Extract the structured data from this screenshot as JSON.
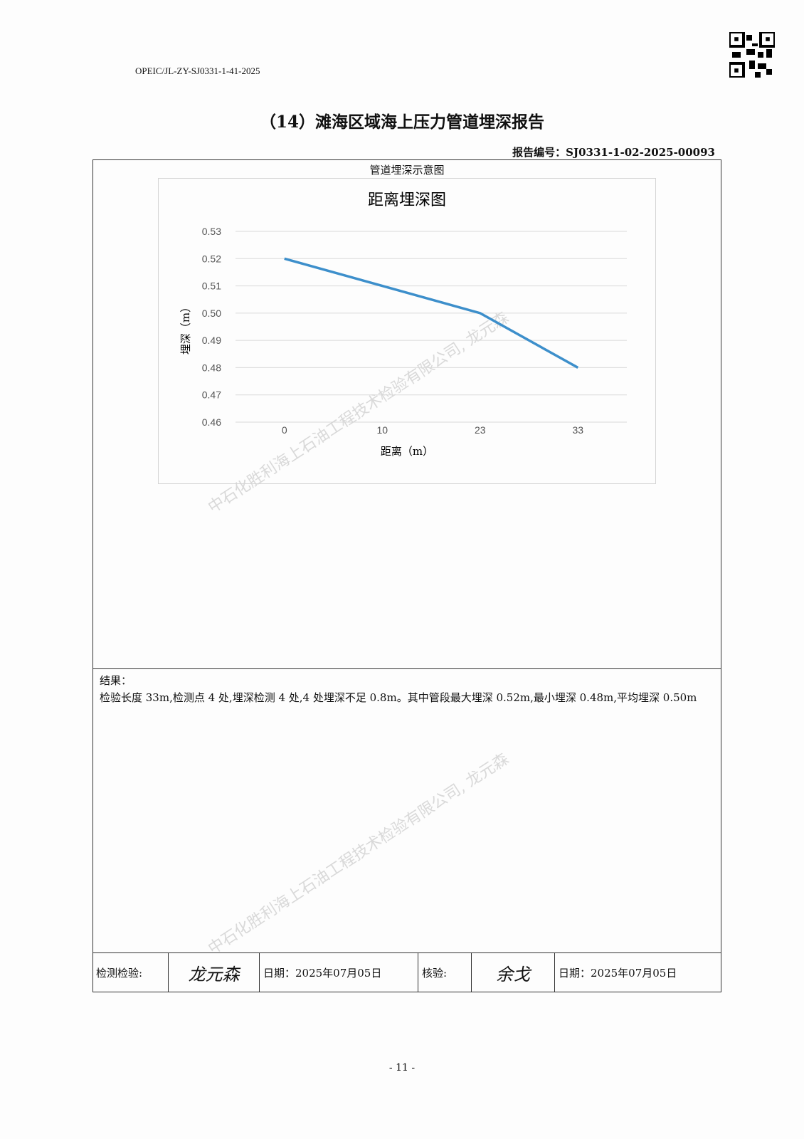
{
  "header": {
    "doc_code": "OPEIC/JL-ZY-SJ0331-1-41-2025",
    "title": "（14）滩海区域海上压力管道埋深报告",
    "report_no": "报告编号：SJ0331-1-02-2025-00093"
  },
  "section_caption": "管道埋深示意图",
  "chart_data": {
    "type": "line",
    "title": "距离埋深图",
    "xlabel": "距离（m）",
    "ylabel": "埋深（m）",
    "categories": [
      "0",
      "10",
      "23",
      "33"
    ],
    "values": [
      0.52,
      0.51,
      0.5,
      0.48
    ],
    "ylim": [
      0.46,
      0.53
    ],
    "yticks": [
      "0.46",
      "0.47",
      "0.48",
      "0.49",
      "0.50",
      "0.51",
      "0.52",
      "0.53"
    ],
    "grid": true,
    "color": "#3d8fcb"
  },
  "result": {
    "label": "结果：",
    "text": "检验长度 33m,检测点 4 处,埋深检测 4 处,4 处埋深不足 0.8m。其中管段最大埋深 0.52m,最小埋深 0.48m,平均埋深 0.50m"
  },
  "signatures": {
    "inspector_label": "检测检验:",
    "inspector_sig": "龙元森",
    "date1": "日期：2025年07月05日",
    "reviewer_label": "核验:",
    "reviewer_sig": "余戈",
    "date2": "日期：2025年07月05日"
  },
  "watermark": "中石化胜利海上石油工程技术检验有限公司, 龙元森",
  "page_number": "- 11 -"
}
